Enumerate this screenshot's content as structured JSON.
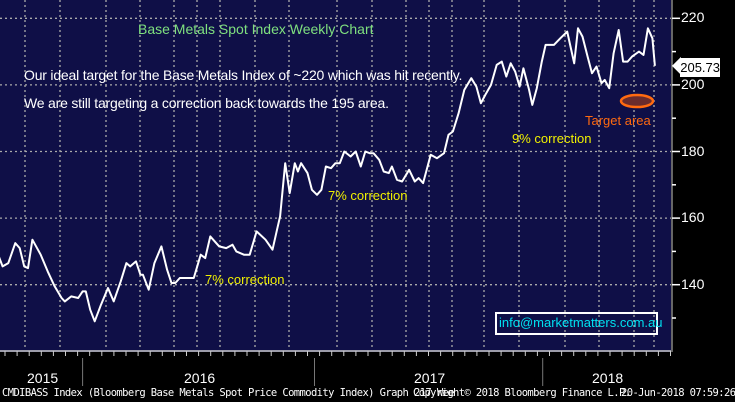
{
  "chart_data": {
    "type": "line",
    "title": "Base Metals Spot Index Weekly Chart",
    "xlabel": "",
    "ylabel": "",
    "xlim": [
      "2015-08-24",
      "2018-06-20"
    ],
    "ylim": [
      120,
      225
    ],
    "grid": true,
    "y_axis_position": "right",
    "y_ticks": [
      140,
      160,
      180,
      200,
      220
    ],
    "x_tick_labels": [
      "2015",
      "2016",
      "2017",
      "2018"
    ],
    "last_value_label": "205.73",
    "series": [
      {
        "color": "#ffffff",
        "x": [
          "2015-08-22",
          "2015-08-28",
          "2015-09-06",
          "2015-09-17",
          "2015-09-24",
          "2015-10-01",
          "2015-10-07",
          "2015-10-14",
          "2015-10-27",
          "2015-11-07",
          "2015-11-18",
          "2015-11-29",
          "2015-12-04",
          "2015-12-14",
          "2015-12-25",
          "2016-01-01",
          "2016-01-06",
          "2016-01-13",
          "2016-01-20",
          "2016-01-30",
          "2016-02-10",
          "2016-02-19",
          "2016-03-01",
          "2016-03-10",
          "2016-03-16",
          "2016-03-25",
          "2016-04-01",
          "2016-04-05",
          "2016-04-14",
          "2016-04-23",
          "2016-05-04",
          "2016-05-13",
          "2016-05-20",
          "2016-05-26",
          "2016-06-02",
          "2016-06-13",
          "2016-06-24",
          "2016-07-05",
          "2016-07-12",
          "2016-07-20",
          "2016-08-03",
          "2016-08-14",
          "2016-08-24",
          "2016-08-30",
          "2016-09-11",
          "2016-09-20",
          "2016-10-01",
          "2016-10-15",
          "2016-10-26",
          "2016-11-02",
          "2016-11-07",
          "2016-11-15",
          "2016-11-22",
          "2016-11-30",
          "2016-12-05",
          "2016-12-10",
          "2016-12-20",
          "2016-12-27",
          "2017-01-04",
          "2017-01-11",
          "2017-01-18",
          "2017-01-26",
          "2017-02-02",
          "2017-02-09",
          "2017-02-16",
          "2017-02-26",
          "2017-03-06",
          "2017-03-14",
          "2017-03-21",
          "2017-03-28",
          "2017-04-03",
          "2017-04-12",
          "2017-04-19",
          "2017-04-27",
          "2017-05-02",
          "2017-05-10",
          "2017-05-18",
          "2017-05-29",
          "2017-06-07",
          "2017-06-13",
          "2017-06-20",
          "2017-07-02",
          "2017-07-12",
          "2017-07-23",
          "2017-07-30",
          "2017-08-06",
          "2017-08-15",
          "2017-08-24",
          "2017-09-04",
          "2017-09-12",
          "2017-09-19",
          "2017-09-26",
          "2017-10-05",
          "2017-10-14",
          "2017-10-22",
          "2017-10-29",
          "2017-11-05",
          "2017-11-12",
          "2017-11-19",
          "2017-11-25",
          "2017-12-04",
          "2017-12-09",
          "2017-12-16",
          "2017-12-24",
          "2017-12-30",
          "2018-01-12",
          "2018-01-22",
          "2018-02-02",
          "2018-02-13",
          "2018-02-19",
          "2018-02-26",
          "2018-03-06",
          "2018-03-13",
          "2018-03-20",
          "2018-03-28",
          "2018-04-02",
          "2018-04-09",
          "2018-04-16",
          "2018-04-24",
          "2018-05-01",
          "2018-05-08",
          "2018-05-15",
          "2018-05-26",
          "2018-06-02",
          "2018-06-09",
          "2018-06-16",
          "2018-06-20"
        ],
        "y": [
          148.5,
          145.5,
          146.5,
          152.5,
          151,
          145.5,
          145,
          153.5,
          149,
          144,
          139.5,
          136,
          135,
          136.5,
          136,
          138,
          138,
          132.5,
          129,
          134,
          139,
          135,
          141,
          146.5,
          145.5,
          147,
          143,
          143,
          138.5,
          146.5,
          151.5,
          144.5,
          140.5,
          140.5,
          142,
          142,
          142,
          149,
          148,
          154.5,
          151.5,
          151,
          152,
          150,
          149,
          149,
          156,
          153.5,
          150.5,
          156.5,
          160.5,
          176.5,
          167.5,
          176.5,
          174,
          176.5,
          173.5,
          168.5,
          167,
          168.5,
          175.5,
          175,
          176.5,
          176.5,
          180,
          178.5,
          180,
          175.5,
          180,
          179.5,
          179.5,
          177.5,
          174,
          173.5,
          175.5,
          171.5,
          171,
          174.5,
          171,
          172,
          170.5,
          179,
          178,
          179.5,
          185,
          186,
          191.5,
          198.5,
          202,
          199.5,
          194.5,
          197,
          200,
          206,
          207,
          202.5,
          206.5,
          204,
          199.5,
          205,
          198.5,
          194,
          199,
          207,
          212,
          212,
          214,
          216,
          206.5,
          217,
          214.5,
          208.5,
          203.5,
          205.5,
          200.5,
          201.5,
          199,
          209.5,
          216.5,
          207,
          207,
          208.5,
          210,
          209,
          217,
          214,
          205.73
        ]
      }
    ],
    "annotations": {
      "note_line1": "Our ideal target for the Base Metals Index of ~220 which was hit recently.",
      "note_line2": "We are still targeting a correction back towards the 195 area.",
      "correction_1": "7% correction",
      "correction_2": "7% correction",
      "correction_3": "9% correction",
      "target_label": "Target area",
      "target_value": 195,
      "email": "info@marketmatters.com.au"
    }
  },
  "colors": {
    "background": "#0f0f47",
    "line": "#ffffff",
    "title": "#7fe07f",
    "correction": "#f0f000",
    "target": "#ff6a10",
    "target_fill": "#6b2c2c",
    "email": "#00e0f0"
  },
  "footer": {
    "source": "CMDIBASS Index (Bloomberg Base Metals Spot Price Commodity Index) Graph 217  Wee",
    "copyright": "Copyright© 2018 Bloomberg Finance L.P.",
    "timestamp": "20-Jun-2018 07:59:26"
  }
}
